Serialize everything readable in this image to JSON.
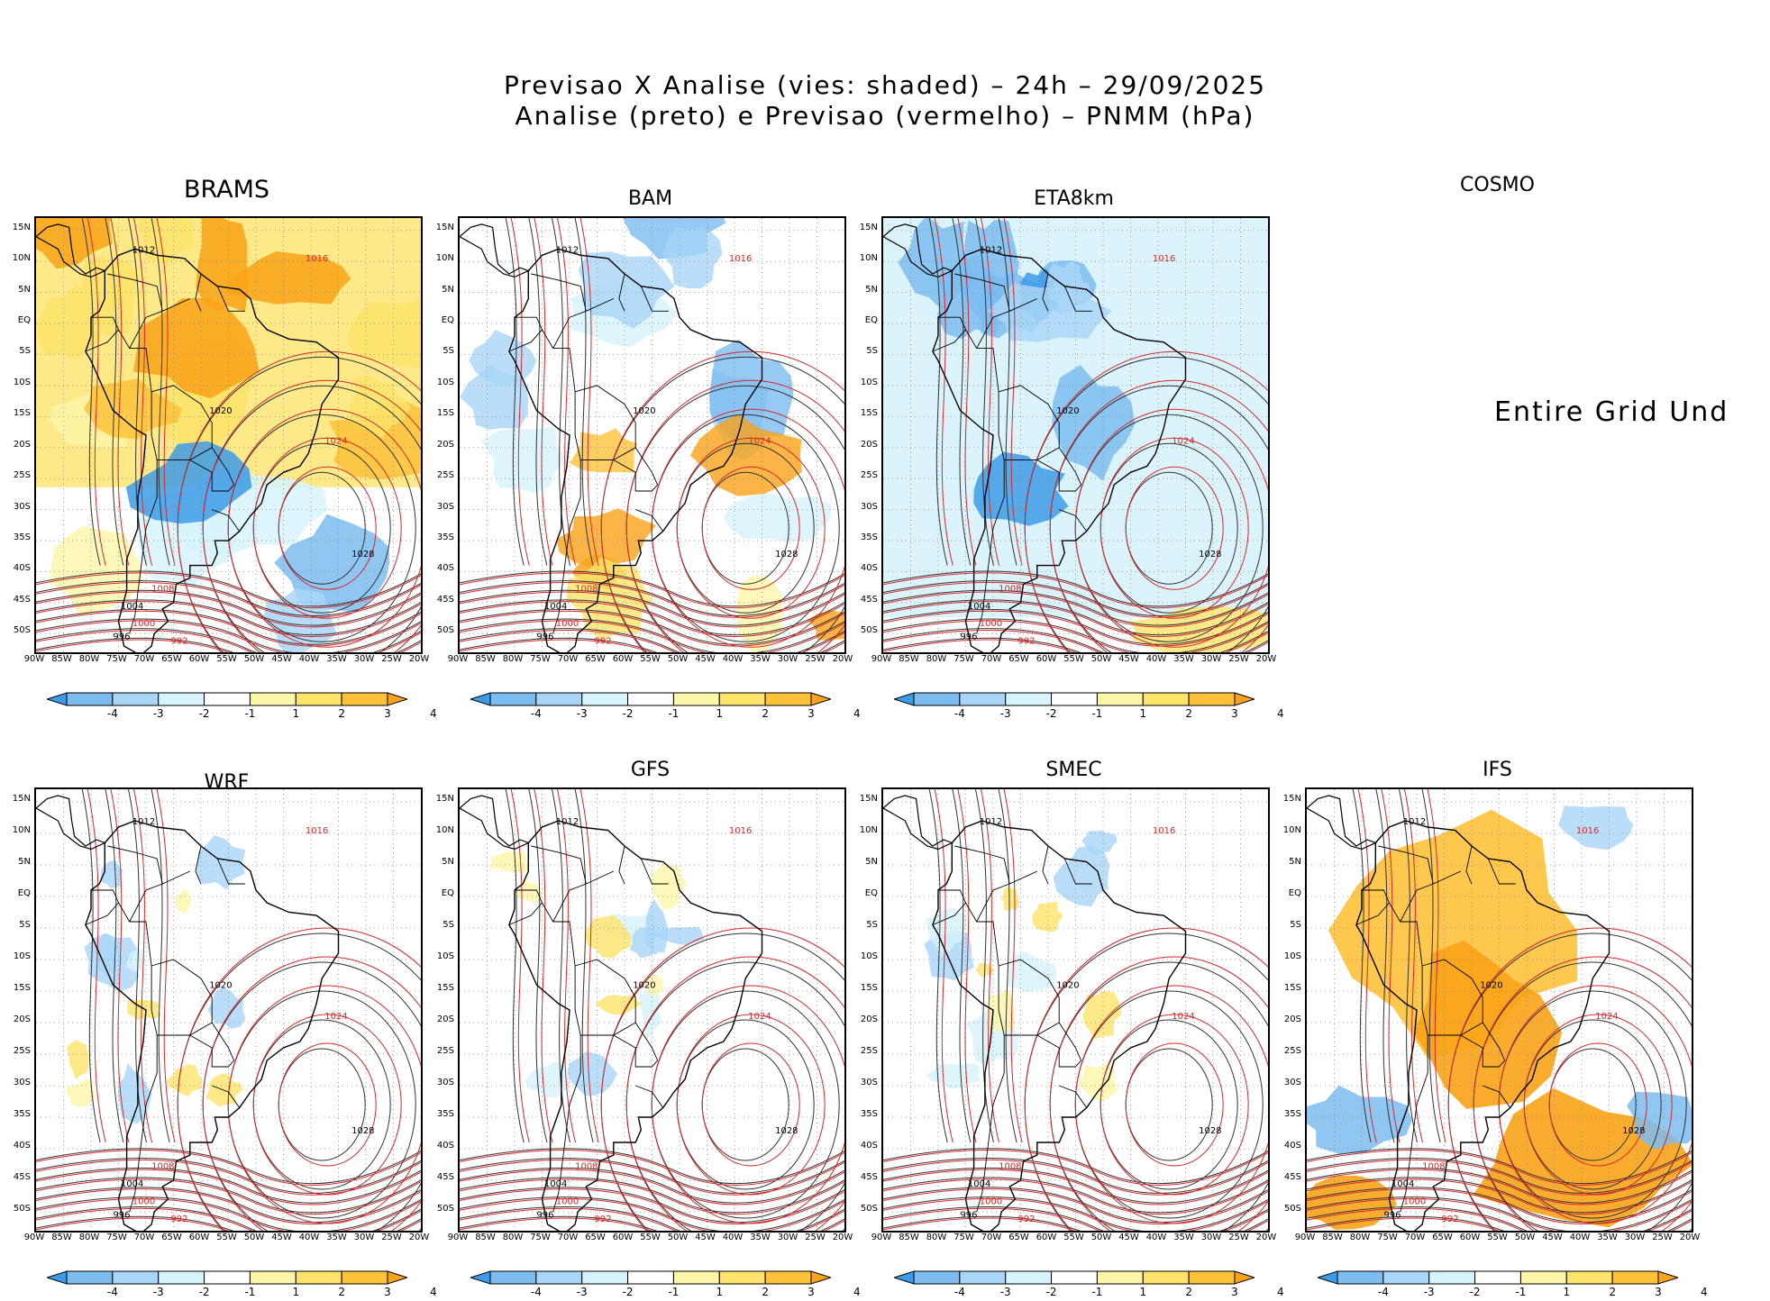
{
  "title_line1": "Previsao X Analise (vies: shaded) – 24h – 29/09/2025",
  "title_line2": "Analise (preto) e Previsao (vermelho) – PNMM (hPa)",
  "y_labels": [
    "15N",
    "10N",
    "5N",
    "EQ",
    "5S",
    "10S",
    "15S",
    "20S",
    "25S",
    "30S",
    "35S",
    "40S",
    "45S",
    "50S"
  ],
  "x_labels": [
    "90W",
    "85W",
    "80W",
    "75W",
    "70W",
    "65W",
    "60W",
    "55W",
    "50W",
    "45W",
    "40W",
    "35W",
    "30W",
    "25W",
    "20W"
  ],
  "colorbar": {
    "labels": [
      "-4",
      "-3",
      "-2",
      "-1",
      "1",
      "2",
      "3",
      "4"
    ],
    "colors": [
      "#3d9be8",
      "#7cbcf0",
      "#a9d6f7",
      "#d7f3fb",
      "#ffffff",
      "#fdf6a8",
      "#fde36a",
      "#fdc23a",
      "#f9a318"
    ]
  },
  "undef_text": "Entire Grid Und",
  "panels": [
    {
      "id": "brams",
      "label": "BRAMS",
      "bias": "warm-wide"
    },
    {
      "id": "bam",
      "label": "BAM",
      "bias": "mixed"
    },
    {
      "id": "eta8km",
      "label": "ETA8km",
      "bias": "cold"
    },
    {
      "id": "cosmo",
      "label": "COSMO",
      "bias": "undefined"
    },
    {
      "id": "wrf",
      "label": "WRF",
      "bias": "neutral"
    },
    {
      "id": "gfs",
      "label": "GFS",
      "bias": "neutral"
    },
    {
      "id": "smec",
      "label": "SMEC",
      "bias": "neutral"
    },
    {
      "id": "ifs",
      "label": "IFS",
      "bias": "warm-land"
    }
  ],
  "contour_labels": [
    "1012",
    "1016",
    "1020",
    "1024",
    "1028",
    "1008",
    "1004",
    "1000",
    "996",
    "992"
  ]
}
